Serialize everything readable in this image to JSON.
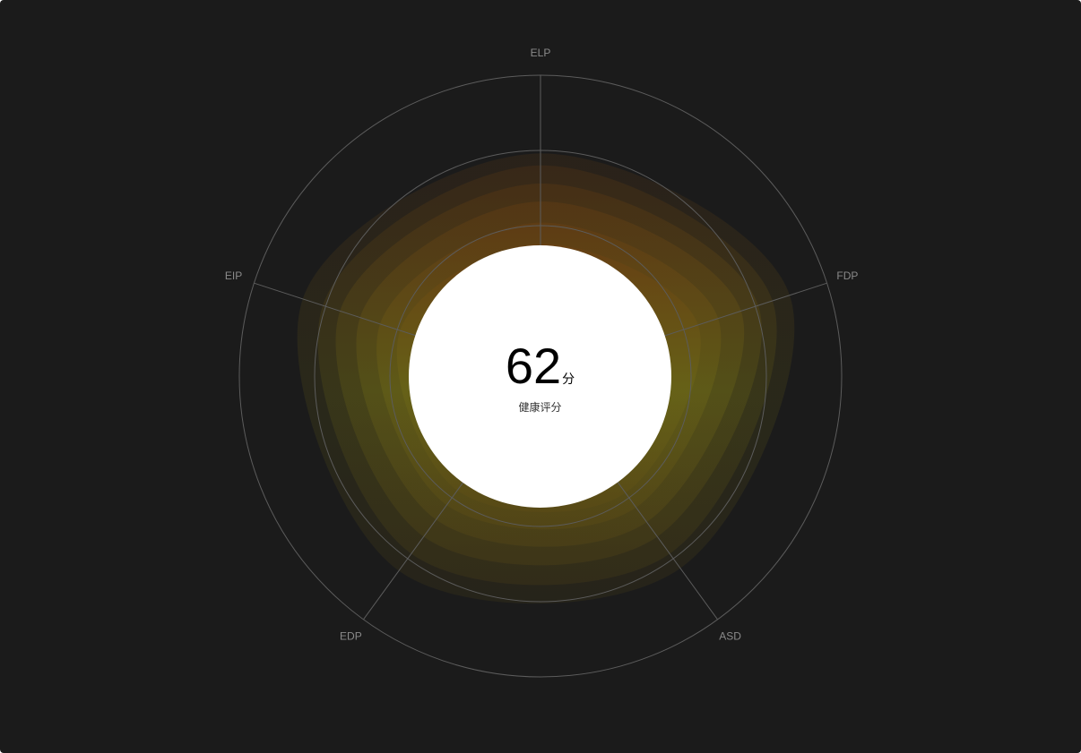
{
  "chart_data": {
    "type": "radar",
    "axes": [
      "ELP",
      "FDP",
      "ASD",
      "EDP",
      "EIP"
    ],
    "max": 100,
    "rings": [
      25,
      50,
      75,
      100
    ],
    "grid": true,
    "layers": [
      {
        "values": [
          74,
          87,
          79,
          80,
          83
        ]
      },
      {
        "values": [
          70,
          81,
          73,
          73,
          76
        ]
      },
      {
        "values": [
          64,
          76,
          66,
          66,
          70
        ]
      },
      {
        "values": [
          58,
          70,
          60,
          59,
          63
        ]
      },
      {
        "values": [
          51,
          62,
          54,
          53,
          56
        ]
      },
      {
        "values": [
          44,
          55,
          48,
          47,
          49
        ]
      }
    ],
    "colors": {
      "background": "#1b1b1b",
      "grid": "#5c5c5c",
      "outer_layer": "#3d2e16",
      "inner_top": "#6b3f12",
      "inner_bottom": "#6b6617"
    }
  },
  "score": {
    "value": "62",
    "unit": "分",
    "caption": "健康评分"
  }
}
